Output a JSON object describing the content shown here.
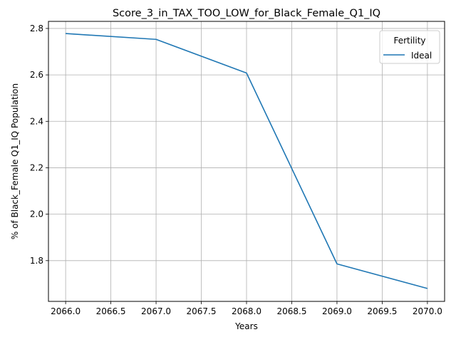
{
  "chart_data": {
    "type": "line",
    "title": "Score_3_in_TAX_TOO_LOW_for_Black_Female_Q1_IQ",
    "xlabel": "Years",
    "ylabel": "% of Black_Female Q1_IQ Population",
    "xlim": [
      2065.81,
      2070.19
    ],
    "ylim": [
      1.6245,
      2.8305
    ],
    "xticks": [
      2066.0,
      2066.5,
      2067.0,
      2067.5,
      2068.0,
      2068.5,
      2069.0,
      2069.5,
      2070.0
    ],
    "xtick_labels": [
      "2066.0",
      "2066.5",
      "2067.0",
      "2067.5",
      "2068.0",
      "2068.5",
      "2069.0",
      "2069.5",
      "2070.0"
    ],
    "yticks": [
      1.8,
      2.0,
      2.2,
      2.4,
      2.6,
      2.8
    ],
    "ytick_labels": [
      "1.8",
      "2.0",
      "2.2",
      "2.4",
      "2.6",
      "2.8"
    ],
    "grid": true,
    "legend": {
      "title": "Fertility",
      "placement": "top-right"
    },
    "series": [
      {
        "name": "Ideal",
        "color": "#1f77b4",
        "x": [
          2066,
          2067,
          2068,
          2069,
          2070
        ],
        "y": [
          2.778,
          2.753,
          2.608,
          1.786,
          1.68
        ]
      }
    ]
  }
}
